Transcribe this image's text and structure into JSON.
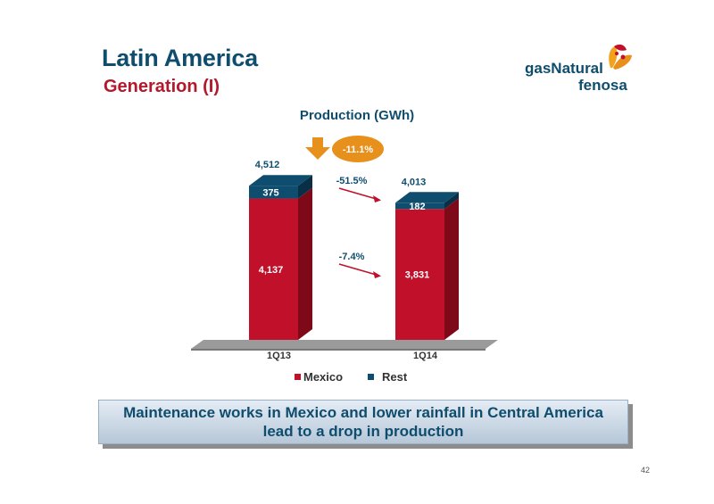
{
  "header": {
    "title": "Latin America",
    "subtitle": "Generation (I)"
  },
  "logo": {
    "text_line1": "gasNatural",
    "text_line2": "fenosa"
  },
  "chart_data": {
    "type": "bar",
    "stacked": true,
    "title": "Production (GWh)",
    "categories": [
      "1Q13",
      "1Q14"
    ],
    "series": [
      {
        "name": "Mexico",
        "values": [
          4137,
          3831
        ],
        "labels": [
          "4,137",
          "3,831"
        ],
        "color": "#c0102a"
      },
      {
        "name": "Rest",
        "values": [
          375,
          182
        ],
        "labels": [
          "375",
          "182"
        ],
        "color": "#0f4d6e"
      }
    ],
    "totals": [
      4512,
      4013
    ],
    "total_labels": [
      "4,512",
      "4,013"
    ],
    "changes": [
      {
        "series": "Rest",
        "label": "-51.5%"
      },
      {
        "series": "Mexico",
        "label": "-7.4%"
      }
    ],
    "total_change_label": "-11.1%",
    "legend_position": "bottom",
    "grid": false
  },
  "footer": {
    "message_line1": "Maintenance works in Mexico and lower rainfall in Central America",
    "message_line2": "lead to a drop in production",
    "page_number": "42"
  },
  "colors": {
    "title": "#0f4d6e",
    "subtitle": "#b4182d",
    "accent_orange": "#e8901c",
    "arrow": "#c0102a"
  }
}
